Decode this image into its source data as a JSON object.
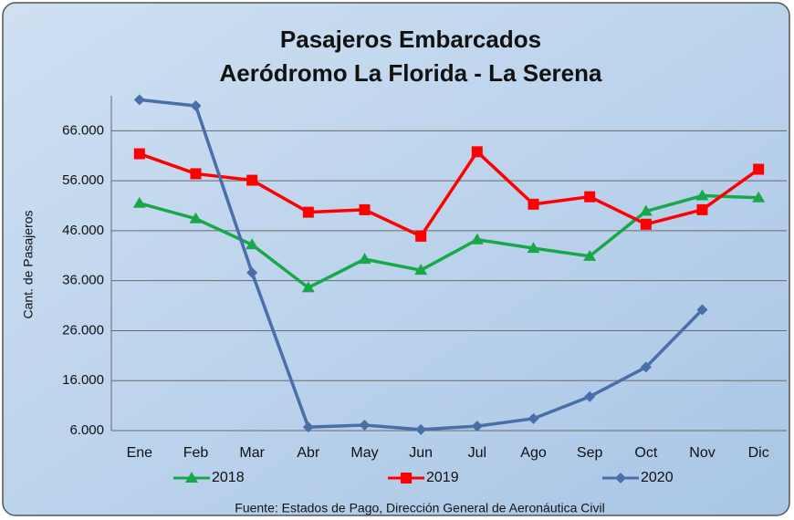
{
  "chart_data": {
    "type": "line",
    "title": "Pasajeros Embarcados",
    "subtitle": "Aeródromo La Florida - La Serena",
    "y_label": "Cant. de Pasajeros",
    "source": "Fuente: Estados de Pago, Dirección General de Aeronáutica Civil",
    "categories": [
      "Ene",
      "Feb",
      "Mar",
      "Abr",
      "May",
      "Jun",
      "Jul",
      "Ago",
      "Sep",
      "Oct",
      "Nov",
      "Dic"
    ],
    "series": [
      {
        "name": "2018",
        "color": "#18a84a",
        "marker": "triangle",
        "values": [
          51500,
          48400,
          43200,
          34600,
          40300,
          38100,
          44200,
          42500,
          40900,
          49900,
          53000,
          52600
        ]
      },
      {
        "name": "2019",
        "color": "#ff0000",
        "marker": "square",
        "values": [
          61400,
          57400,
          56100,
          49700,
          50200,
          44900,
          61800,
          51300,
          52800,
          47300,
          50200,
          58300
        ]
      },
      {
        "name": "2020",
        "color": "#4a6fa8",
        "marker": "diamond",
        "values": [
          72200,
          71000,
          37600,
          6700,
          7100,
          6200,
          6900,
          8400,
          12800,
          18700,
          30200,
          null
        ]
      }
    ],
    "ylim": [
      6000,
      73000
    ],
    "yticks": [
      {
        "value": 6000,
        "label": "6.000"
      },
      {
        "value": 16000,
        "label": "16.000"
      },
      {
        "value": 26000,
        "label": "26.000"
      },
      {
        "value": 36000,
        "label": "36.000"
      },
      {
        "value": 46000,
        "label": "46.000"
      },
      {
        "value": 56000,
        "label": "56.000"
      },
      {
        "value": 66000,
        "label": "66.000"
      }
    ],
    "grid": true
  }
}
